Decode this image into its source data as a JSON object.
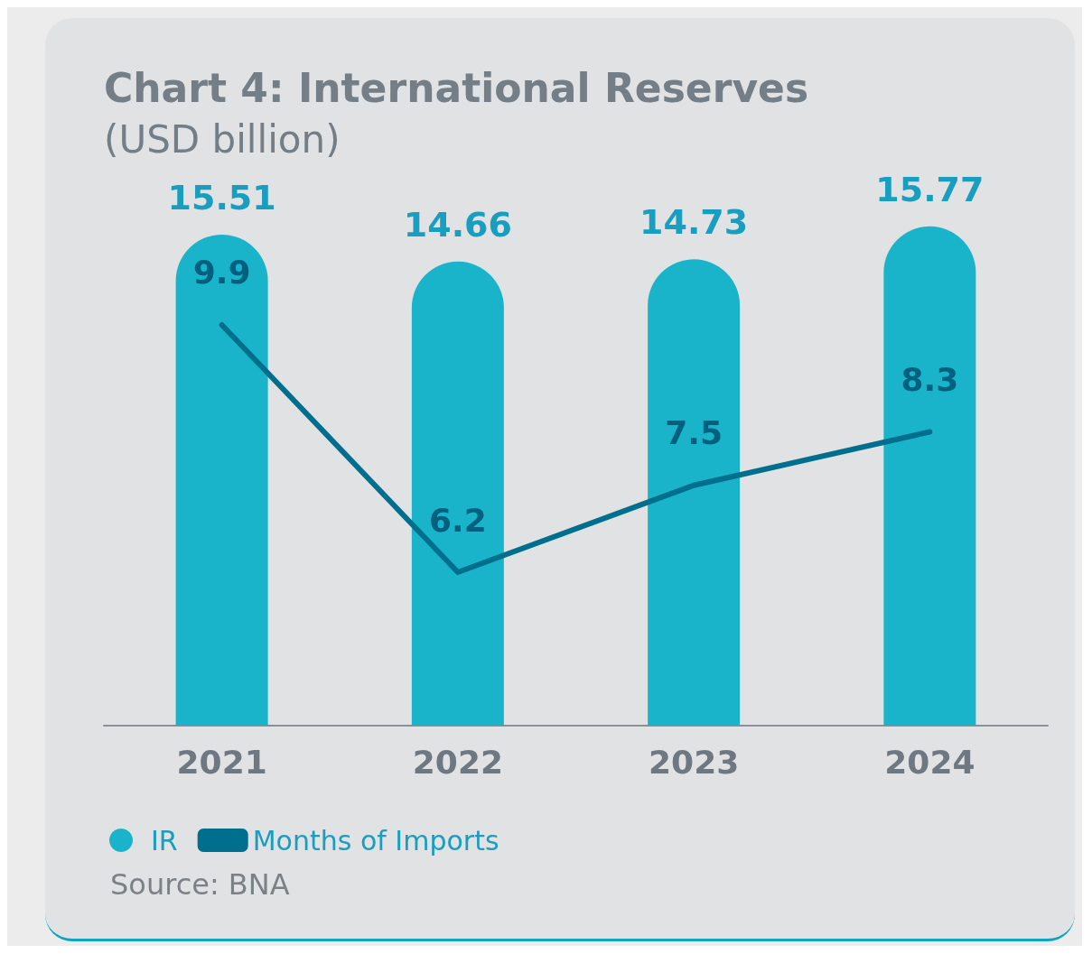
{
  "chart_data": {
    "type": "bar",
    "title": "Chart 4: International Reserves",
    "subtitle": "(USD billion)",
    "categories": [
      "2021",
      "2022",
      "2023",
      "2024"
    ],
    "series": [
      {
        "name": "IR",
        "color": "#1ab4ca",
        "values": [
          15.51,
          14.66,
          14.73,
          15.77
        ]
      },
      {
        "name": "Months of Imports",
        "type": "line",
        "axis": "y2",
        "color": "#006f8e",
        "values": [
          9.9,
          6.2,
          7.5,
          8.3
        ]
      }
    ],
    "tick_labels": "x",
    "data_labels": true,
    "legend": "bottom left",
    "marker": "none",
    "line_style": "solid",
    "annotations": [
      "Source: BNA"
    ]
  }
}
